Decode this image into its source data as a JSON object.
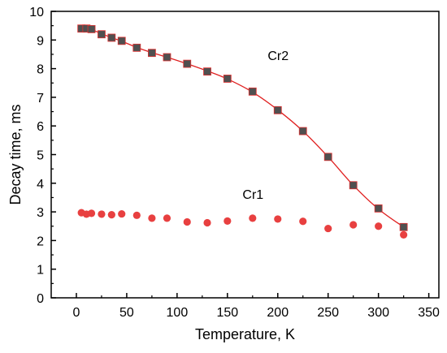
{
  "chart_data": {
    "type": "scatter",
    "xlabel": "Temperature, K",
    "ylabel": "Decay time, ms",
    "xlim": [
      -25,
      360
    ],
    "ylim": [
      0,
      10
    ],
    "xticks": [
      0,
      50,
      100,
      150,
      200,
      250,
      300,
      350
    ],
    "yticks": [
      0,
      1,
      2,
      3,
      4,
      5,
      6,
      7,
      8,
      9,
      10
    ],
    "grid": false,
    "legend": "none",
    "annotations": [
      {
        "text": "Cr2",
        "x": 190,
        "y": 8.3
      },
      {
        "text": "Cr1",
        "x": 165,
        "y": 3.45
      }
    ],
    "series": [
      {
        "marker": "square",
        "color": "#505050",
        "edge_color": "#e03030",
        "x": [
          5,
          10,
          15,
          25,
          35,
          45,
          60,
          75,
          90,
          110,
          130,
          150,
          175,
          200,
          225,
          250,
          275,
          300,
          325
        ],
        "y": [
          9.4,
          9.4,
          9.38,
          9.2,
          9.08,
          8.97,
          8.73,
          8.55,
          8.4,
          8.17,
          7.9,
          7.65,
          7.2,
          6.55,
          5.82,
          4.92,
          3.93,
          3.12,
          2.47
        ]
      },
      {
        "marker": "circle",
        "color": "#e84040",
        "x": [
          5,
          10,
          15,
          25,
          35,
          45,
          60,
          75,
          90,
          110,
          130,
          150,
          175,
          200,
          225,
          250,
          275,
          300,
          325
        ],
        "y": [
          2.97,
          2.92,
          2.95,
          2.92,
          2.9,
          2.93,
          2.88,
          2.78,
          2.78,
          2.65,
          2.62,
          2.68,
          2.78,
          2.75,
          2.67,
          2.42,
          2.55,
          2.5,
          2.2
        ]
      }
    ],
    "fit_line": {
      "color": "#e02020",
      "x": [
        5,
        15,
        25,
        35,
        45,
        60,
        75,
        90,
        110,
        130,
        150,
        175,
        200,
        225,
        250,
        275,
        300,
        325
      ],
      "y": [
        9.41,
        9.36,
        9.22,
        9.08,
        8.96,
        8.74,
        8.56,
        8.4,
        8.17,
        7.92,
        7.64,
        7.18,
        6.56,
        5.82,
        4.92,
        3.93,
        3.1,
        2.47
      ]
    }
  }
}
